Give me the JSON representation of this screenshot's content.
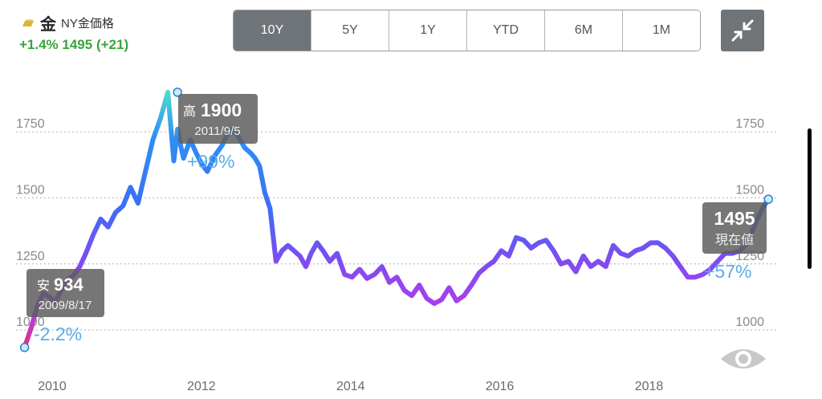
{
  "header": {
    "icon": "gold-bar-icon",
    "kanji": "金",
    "name": "NY金価格",
    "change": "+1.4% 1495 (+21)",
    "change_color": "#3aa43a"
  },
  "tabs": [
    {
      "label": "10Y",
      "active": true
    },
    {
      "label": "5Y",
      "active": false
    },
    {
      "label": "1Y",
      "active": false
    },
    {
      "label": "YTD",
      "active": false
    },
    {
      "label": "6M",
      "active": false
    },
    {
      "label": "1M",
      "active": false
    }
  ],
  "controls": {
    "collapse_icon": "collapse-icon",
    "eye_icon": "eye-icon"
  },
  "callouts": {
    "low": {
      "prefix": "安",
      "value": "934",
      "date": "2009/8/17",
      "pct": "-2.2%"
    },
    "high": {
      "prefix": "高",
      "value": "1900",
      "date": "2011/9/5",
      "pct": "+99%"
    },
    "current": {
      "value": "1495",
      "label": "現在値",
      "pct": "+57%"
    }
  },
  "chart_data": {
    "type": "line",
    "title": "",
    "xlabel": "",
    "ylabel": "",
    "x_ticks": [
      "2010",
      "2012",
      "2014",
      "2016",
      "2018"
    ],
    "y_ticks": [
      1000,
      1250,
      1500,
      1750
    ],
    "y_tick_labels_left": [
      "1000",
      "1250",
      "1500",
      "1750"
    ],
    "y_tick_labels_right": [
      "1000",
      "1250",
      "1500",
      "1750"
    ],
    "xlim": [
      2009.58,
      2019.63
    ],
    "ylim": [
      912,
      1930
    ],
    "grid": true,
    "gradient_colors": [
      "#e8306e",
      "#b03cf0",
      "#7c4df0",
      "#3b6ff5",
      "#2f8ef5",
      "#55e6c6"
    ],
    "series": [
      {
        "x": [
          2009.63,
          2009.72,
          2009.8,
          2009.88,
          2009.96,
          2010.04,
          2010.12,
          2010.2,
          2010.28,
          2010.37,
          2010.45,
          2010.55,
          2010.65,
          2010.75,
          2010.85,
          2010.95,
          2011.05,
          2011.15,
          2011.25,
          2011.35,
          2011.45,
          2011.55,
          2011.63,
          2011.68,
          2011.72,
          2011.76,
          2011.85,
          2011.93,
          2012.0,
          2012.08,
          2012.18,
          2012.28,
          2012.38,
          2012.48,
          2012.58,
          2012.66,
          2012.72,
          2012.78,
          2012.85,
          2012.92,
          2013.0,
          2013.08,
          2013.16,
          2013.24,
          2013.32,
          2013.4,
          2013.47,
          2013.55,
          2013.63,
          2013.72,
          2013.82,
          2013.92,
          2014.02,
          2014.12,
          2014.22,
          2014.32,
          2014.42,
          2014.52,
          2014.62,
          2014.72,
          2014.82,
          2014.92,
          2015.02,
          2015.12,
          2015.22,
          2015.32,
          2015.42,
          2015.52,
          2015.62,
          2015.72,
          2015.82,
          2015.92,
          2016.02,
          2016.12,
          2016.22,
          2016.32,
          2016.42,
          2016.52,
          2016.62,
          2016.72,
          2016.82,
          2016.92,
          2017.02,
          2017.12,
          2017.22,
          2017.32,
          2017.42,
          2017.52,
          2017.62,
          2017.72,
          2017.82,
          2017.92,
          2018.02,
          2018.12,
          2018.22,
          2018.32,
          2018.42,
          2018.52,
          2018.62,
          2018.72,
          2018.82,
          2018.92,
          2019.02,
          2019.12,
          2019.22,
          2019.32,
          2019.42,
          2019.52,
          2019.6
        ],
        "values": [
          934,
          1010,
          1090,
          1140,
          1125,
          1105,
          1150,
          1190,
          1205,
          1240,
          1290,
          1360,
          1420,
          1390,
          1445,
          1470,
          1540,
          1480,
          1600,
          1720,
          1800,
          1900,
          1640,
          1760,
          1700,
          1650,
          1720,
          1670,
          1630,
          1600,
          1660,
          1700,
          1760,
          1740,
          1690,
          1670,
          1650,
          1620,
          1520,
          1460,
          1260,
          1300,
          1320,
          1300,
          1280,
          1240,
          1290,
          1330,
          1300,
          1260,
          1290,
          1210,
          1200,
          1230,
          1195,
          1210,
          1240,
          1180,
          1200,
          1150,
          1130,
          1170,
          1120,
          1100,
          1115,
          1160,
          1110,
          1130,
          1170,
          1215,
          1240,
          1260,
          1300,
          1280,
          1350,
          1340,
          1310,
          1330,
          1340,
          1300,
          1250,
          1260,
          1220,
          1280,
          1240,
          1260,
          1240,
          1320,
          1290,
          1280,
          1300,
          1310,
          1330,
          1330,
          1310,
          1280,
          1240,
          1200,
          1200,
          1210,
          1230,
          1260,
          1290,
          1290,
          1300,
          1330,
          1400,
          1460,
          1495
        ]
      }
    ],
    "annotations": [
      {
        "label": "安 934 2009/8/17 -2.2%",
        "x": 2009.63,
        "y": 934
      },
      {
        "label": "高 1900 2011/9/5 +99%",
        "x": 2011.68,
        "y": 1900
      },
      {
        "label": "1495 現在値 +57%",
        "x": 2019.6,
        "y": 1495
      }
    ]
  }
}
